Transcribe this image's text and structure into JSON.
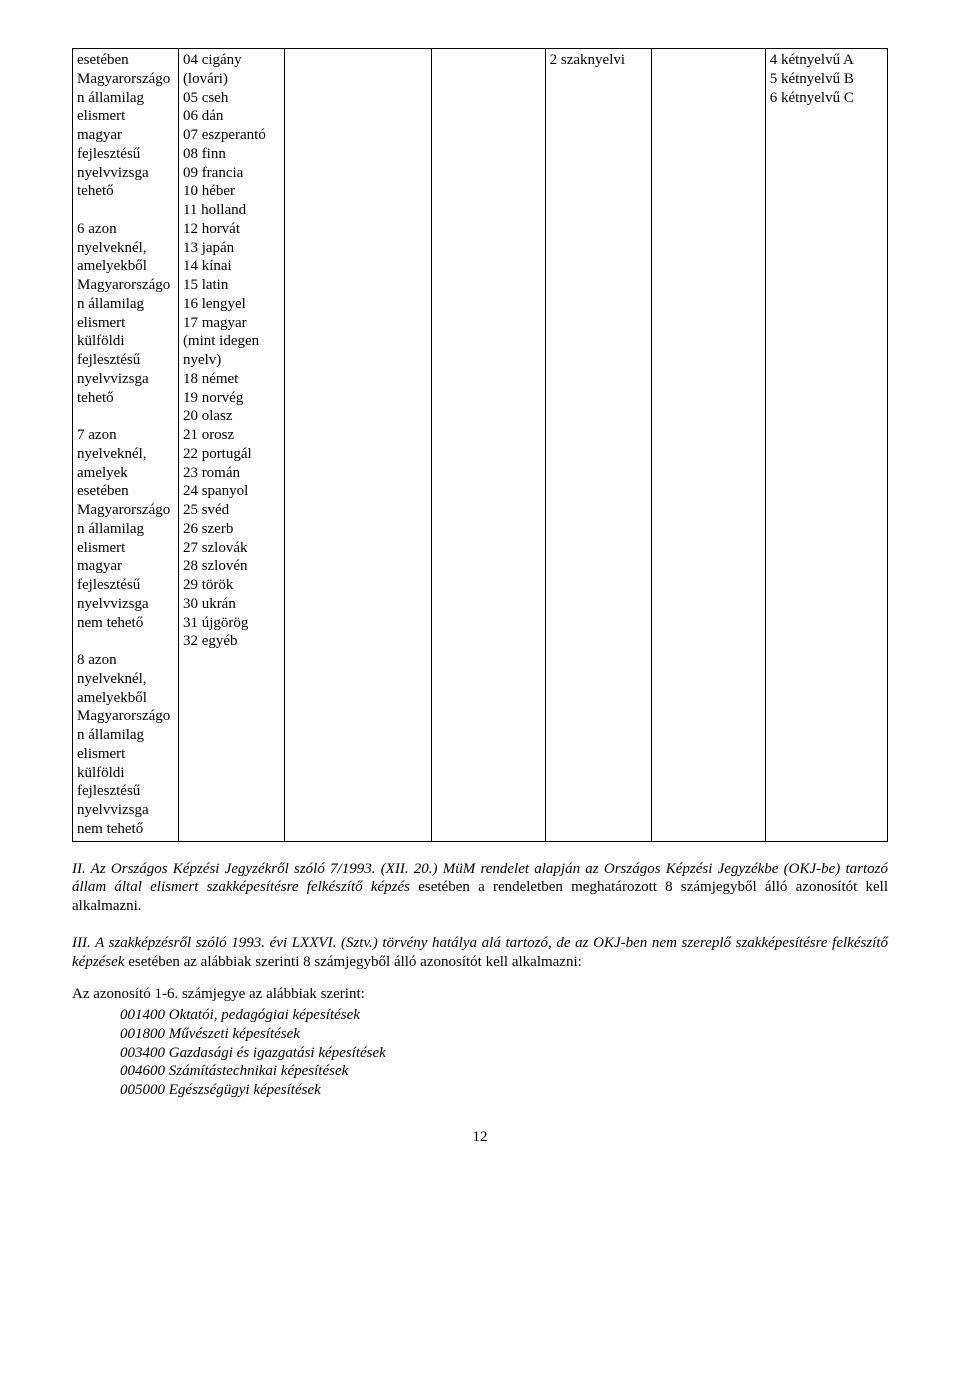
{
  "table": {
    "col1": "esetében Magyarországon államilag elismert magyar fejlesztésű nyelvvizsga tehető\n\n6 azon nyelveknél, amelyekből Magyarországon államilag elismert külföldi fejlesztésű nyelvvizsga tehető\n\n7 azon nyelveknél, amelyek esetében Magyarországon államilag elismert magyar fejlesztésű nyelvvizsga nem tehető\n\n8 azon nyelveknél, amelyekből Magyarországon államilag elismert külföldi fejlesztésű nyelvvizsga nem tehető",
    "col2_lines": [
      "04 cigány (lovári)",
      "05 cseh",
      "06 dán",
      "07 eszperantó",
      "08 finn",
      "09 francia",
      "10 héber",
      "11 holland",
      "12 horvát",
      "13 japán",
      "14 kínai",
      "15 latin",
      "16 lengyel",
      "17 magyar (mint idegen nyelv)",
      "18 német",
      "19 norvég",
      "20 olasz",
      "21 orosz",
      "22 portugál",
      "23 román",
      "24 spanyol",
      "25 svéd",
      "26 szerb",
      "27 szlovák",
      "28 szlovén",
      "29 török",
      "30 ukrán",
      "31 újgörög",
      "32 egyéb"
    ],
    "col5": "2 szaknyelvi",
    "col7": "4 kétnyelvű A\n5 kétnyelvű B\n6 kétnyelvű C"
  },
  "para1_italic": "II. Az Országos Képzési Jegyzékről szóló 7/1993. (XII. 20.) MüM rendelet alapján az Országos Képzési Jegyzékbe (OKJ-be) tartozó állam által elismert szakképesítésre felkészítő képzés ",
  "para1_plain": "esetében a rendeletben meghatározott 8 számjegyből álló azonosítót kell alkalmazni.",
  "para2_italic": "III. A szakképzésről szóló 1993. évi LXXVI. (Sztv.) törvény hatálya alá tartozó, de az OKJ-ben nem szereplő szakképesítésre felkészítő képzések ",
  "para2_plain": "esetében az alábbiak szerinti 8 számjegyből álló azonosítót kell alkalmazni:",
  "list_heading": "Az azonosító 1-6. számjegye az alábbiak szerint:",
  "list_items": [
    "001400 Oktatói, pedagógiai képesítések",
    "001800 Művészeti képesítések",
    "003400 Gazdasági és igazgatási képesítések",
    "004600 Számítástechnikai képesítések",
    "005000 Egészségügyi képesítések"
  ],
  "page_number": "12"
}
